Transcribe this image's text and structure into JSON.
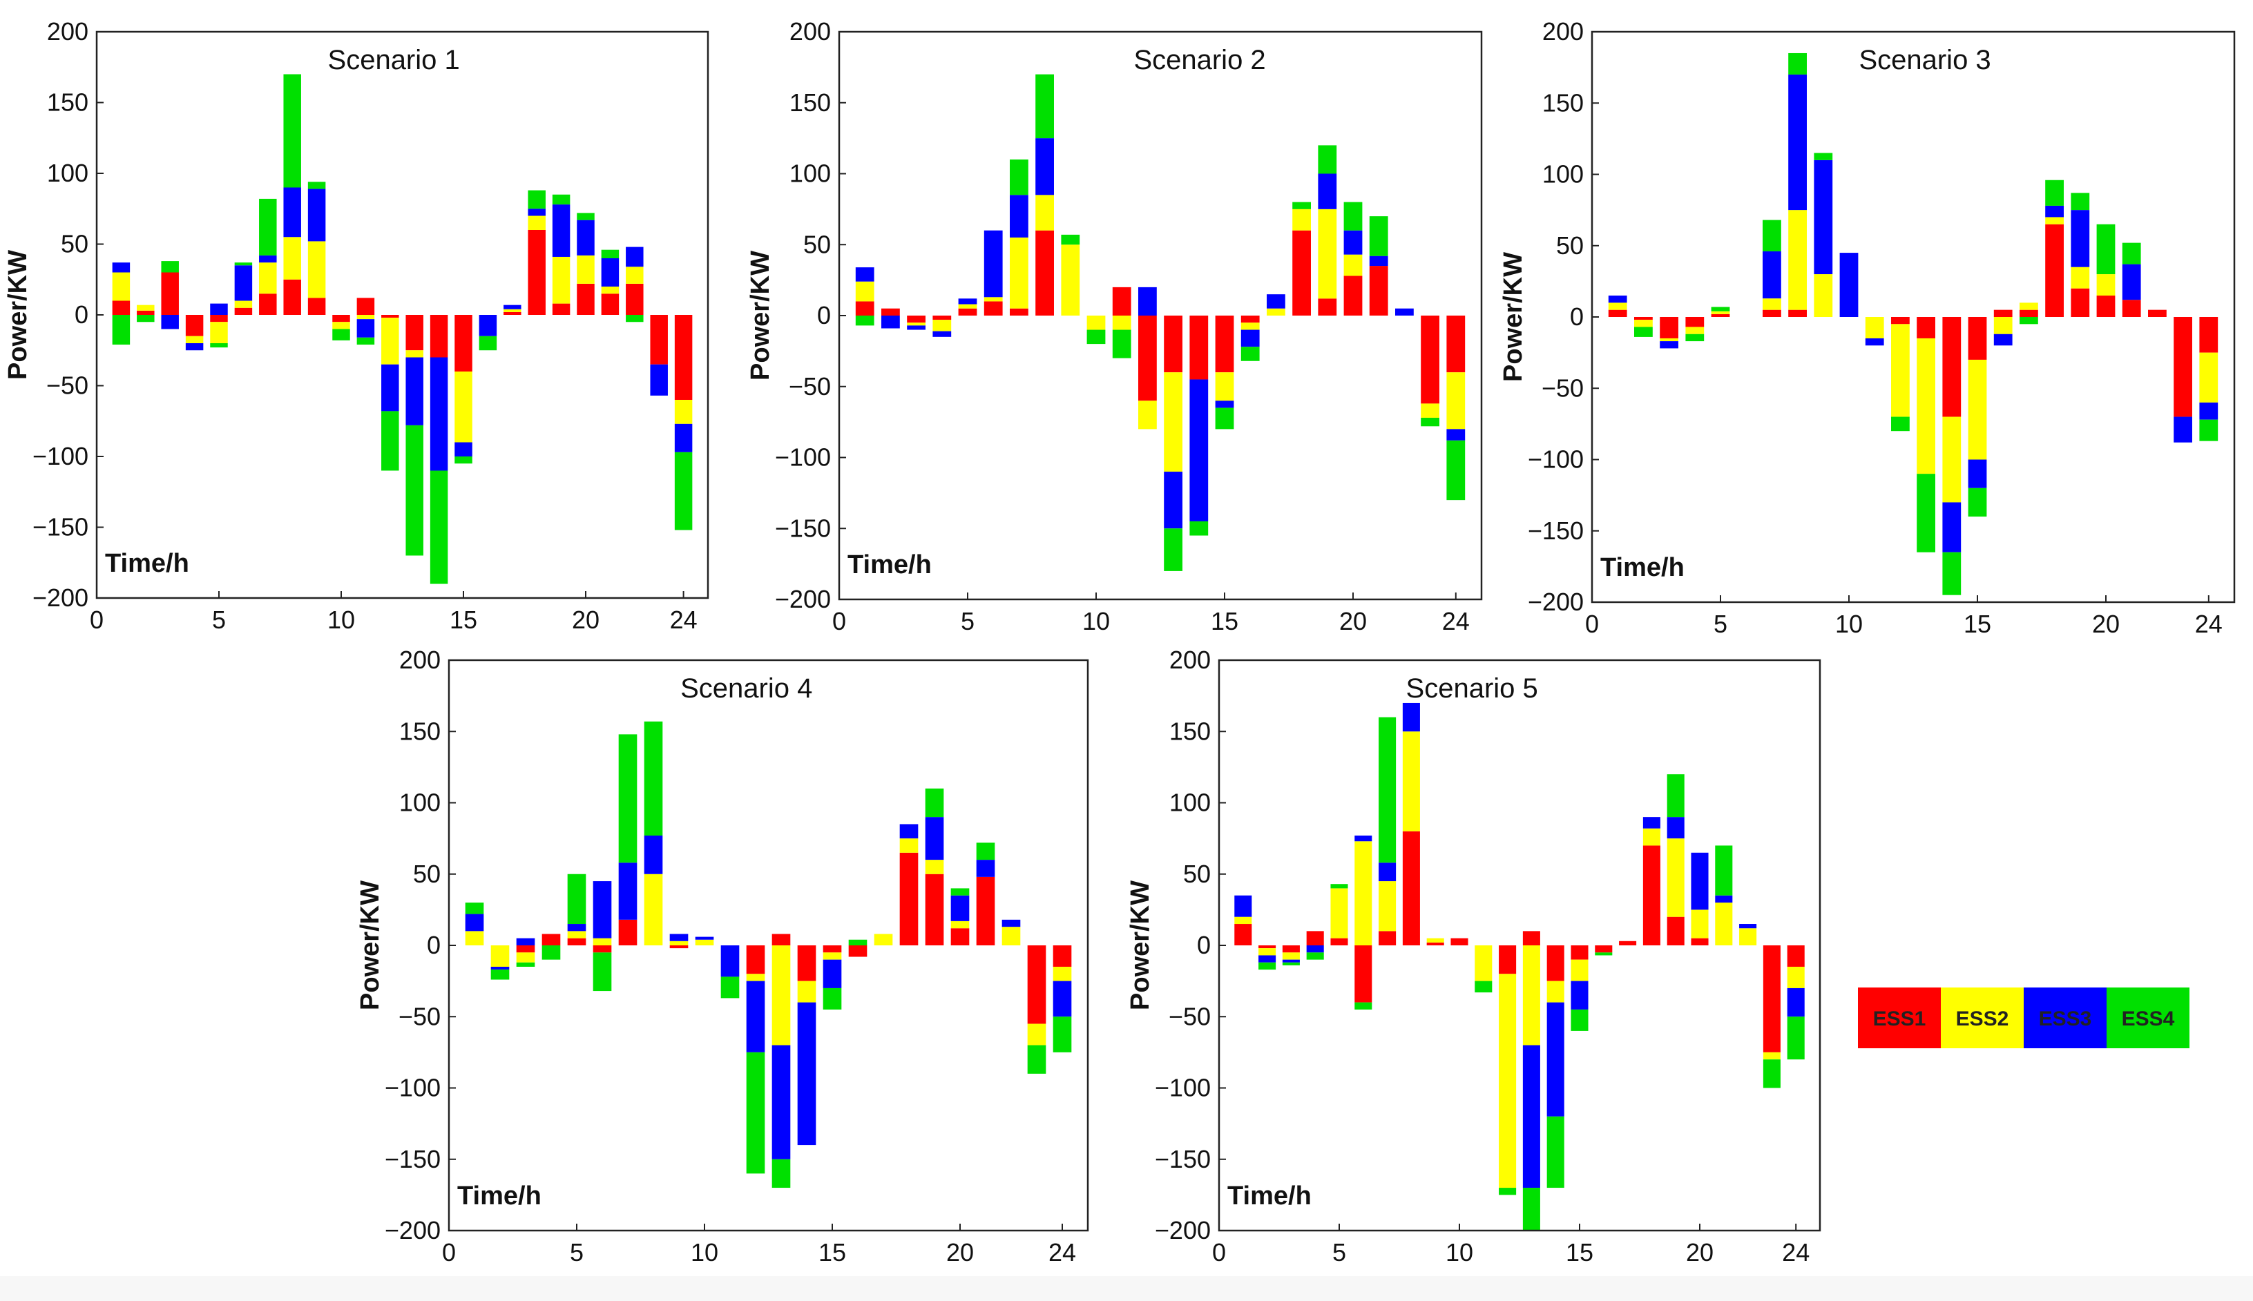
{
  "figure": {
    "time_label": "Time/h"
  },
  "legend": [
    {
      "name": "ESS1",
      "color": "#ff0000"
    },
    {
      "name": "ESS2",
      "color": "#ffff00"
    },
    {
      "name": "ESS3",
      "color": "#0000ff"
    },
    {
      "name": "ESS4",
      "color": "#00e000"
    }
  ],
  "chart_data": [
    {
      "type": "bar",
      "stacked": true,
      "title": "Scenario 1",
      "xlabel": "Time/h",
      "ylabel": "Power/KW",
      "xlim": [
        0,
        25
      ],
      "ylim": [
        -200,
        200
      ],
      "xticks": [
        0,
        5,
        10,
        15,
        20,
        24
      ],
      "yticks": [
        200,
        150,
        100,
        50,
        0,
        -50,
        -100,
        -150,
        -200
      ],
      "categories": [
        1,
        2,
        3,
        4,
        5,
        6,
        7,
        8,
        9,
        10,
        11,
        12,
        13,
        14,
        15,
        16,
        17,
        18,
        19,
        20,
        21,
        22,
        23,
        24
      ],
      "series": [
        {
          "name": "ESS1",
          "values": [
            10,
            3,
            30,
            -15,
            -5,
            5,
            15,
            25,
            12,
            -5,
            12,
            -2,
            -25,
            -30,
            -40,
            0,
            2,
            60,
            8,
            22,
            15,
            22,
            -35,
            -60
          ]
        },
        {
          "name": "ESS2",
          "values": [
            20,
            4,
            0,
            -5,
            -15,
            5,
            22,
            30,
            40,
            -5,
            -3,
            -33,
            -5,
            0,
            -50,
            0,
            2,
            10,
            33,
            20,
            5,
            12,
            0,
            -17
          ]
        },
        {
          "name": "ESS3",
          "values": [
            7,
            0,
            -10,
            -5,
            8,
            25,
            5,
            35,
            37,
            0,
            -13,
            -33,
            -48,
            -80,
            -10,
            -15,
            3,
            5,
            37,
            25,
            20,
            14,
            -22,
            -20
          ]
        },
        {
          "name": "ESS4",
          "values": [
            -21,
            -5,
            8,
            0,
            -3,
            2,
            40,
            80,
            5,
            -8,
            -5,
            -42,
            -92,
            -80,
            -5,
            -10,
            0,
            13,
            7,
            5,
            6,
            -5,
            0,
            -55
          ]
        }
      ]
    },
    {
      "type": "bar",
      "stacked": true,
      "title": "Scenario 2",
      "xlabel": "Time/h",
      "ylabel": "Power/KW",
      "xlim": [
        0,
        25
      ],
      "ylim": [
        -200,
        200
      ],
      "xticks": [
        0,
        5,
        10,
        15,
        20,
        24
      ],
      "yticks": [
        200,
        150,
        100,
        50,
        0,
        -50,
        -100,
        -150,
        -200
      ],
      "categories": [
        1,
        2,
        3,
        4,
        5,
        6,
        7,
        8,
        9,
        10,
        11,
        12,
        13,
        14,
        15,
        16,
        17,
        18,
        19,
        20,
        21,
        22,
        23,
        24
      ],
      "series": [
        {
          "name": "ESS1",
          "values": [
            10,
            5,
            -5,
            -3,
            5,
            10,
            5,
            60,
            0,
            0,
            20,
            -60,
            -40,
            -45,
            -40,
            -5,
            0,
            60,
            12,
            28,
            35,
            0,
            -62,
            -40
          ]
        },
        {
          "name": "ESS2",
          "values": [
            14,
            0,
            -2,
            -8,
            3,
            3,
            50,
            25,
            50,
            -10,
            -10,
            -20,
            -70,
            0,
            -20,
            -5,
            5,
            15,
            63,
            15,
            0,
            0,
            -10,
            -40
          ]
        },
        {
          "name": "ESS3",
          "values": [
            10,
            -9,
            -3,
            -4,
            4,
            47,
            30,
            40,
            0,
            0,
            0,
            20,
            -40,
            -100,
            -5,
            -12,
            10,
            0,
            25,
            17,
            7,
            5,
            0,
            -8
          ]
        },
        {
          "name": "ESS4",
          "values": [
            -7,
            0,
            0,
            0,
            0,
            0,
            25,
            45,
            7,
            -10,
            -20,
            0,
            -30,
            -10,
            -15,
            -10,
            0,
            5,
            20,
            20,
            28,
            0,
            -6,
            -42
          ]
        }
      ]
    },
    {
      "type": "bar",
      "stacked": true,
      "title": "Scenario 3",
      "xlabel": "Time/h",
      "ylabel": "Power/KW",
      "xlim": [
        0,
        25
      ],
      "ylim": [
        -200,
        200
      ],
      "xticks": [
        0,
        5,
        10,
        15,
        20,
        24
      ],
      "yticks": [
        200,
        150,
        100,
        50,
        0,
        -50,
        -100,
        -150,
        -200
      ],
      "categories": [
        1,
        2,
        3,
        4,
        5,
        6,
        7,
        8,
        9,
        10,
        11,
        12,
        13,
        14,
        15,
        16,
        17,
        18,
        19,
        20,
        21,
        22,
        23,
        24
      ],
      "series": [
        {
          "name": "ESS1",
          "values": [
            5,
            -2,
            -15,
            -7,
            2,
            0,
            5,
            5,
            0,
            0,
            0,
            -5,
            -15,
            -70,
            -30,
            5,
            5,
            65,
            20,
            15,
            12,
            5,
            -70,
            -25
          ]
        },
        {
          "name": "ESS2",
          "values": [
            5,
            -5,
            -2,
            -5,
            2,
            0,
            8,
            70,
            30,
            0,
            -15,
            -65,
            -95,
            -60,
            -70,
            -12,
            5,
            5,
            15,
            15,
            0,
            0,
            0,
            -35
          ]
        },
        {
          "name": "ESS3",
          "values": [
            5,
            0,
            -5,
            0,
            0,
            0,
            33,
            95,
            80,
            45,
            -5,
            0,
            0,
            -35,
            -20,
            -8,
            0,
            8,
            40,
            0,
            25,
            0,
            -18,
            -12
          ]
        },
        {
          "name": "ESS4",
          "values": [
            0,
            -7,
            0,
            -5,
            3,
            0,
            22,
            15,
            5,
            0,
            0,
            -10,
            -55,
            -30,
            -20,
            0,
            -5,
            18,
            12,
            35,
            15,
            0,
            0,
            -15
          ]
        }
      ]
    },
    {
      "type": "bar",
      "stacked": true,
      "title": "Scenario 4",
      "xlabel": "Time/h",
      "ylabel": "Power/KW",
      "xlim": [
        0,
        25
      ],
      "ylim": [
        -200,
        200
      ],
      "xticks": [
        0,
        5,
        10,
        15,
        20,
        24
      ],
      "yticks": [
        200,
        150,
        100,
        50,
        0,
        -50,
        -100,
        -150,
        -200
      ],
      "categories": [
        1,
        2,
        3,
        4,
        5,
        6,
        7,
        8,
        9,
        10,
        11,
        12,
        13,
        14,
        15,
        16,
        17,
        18,
        19,
        20,
        21,
        22,
        23,
        24
      ],
      "series": [
        {
          "name": "ESS1",
          "values": [
            0,
            0,
            -5,
            8,
            5,
            -5,
            18,
            0,
            -2,
            0,
            0,
            -20,
            8,
            -25,
            -5,
            -8,
            0,
            65,
            50,
            12,
            48,
            0,
            -55,
            -15
          ]
        },
        {
          "name": "ESS2",
          "values": [
            10,
            -15,
            -7,
            0,
            5,
            5,
            0,
            50,
            3,
            4,
            0,
            -5,
            -70,
            -15,
            -5,
            0,
            8,
            10,
            10,
            5,
            0,
            13,
            -15,
            -10
          ]
        },
        {
          "name": "ESS3",
          "values": [
            12,
            -2,
            5,
            0,
            5,
            40,
            40,
            27,
            5,
            2,
            -22,
            -50,
            -80,
            -100,
            -20,
            0,
            0,
            10,
            30,
            18,
            12,
            5,
            0,
            -25
          ]
        },
        {
          "name": "ESS4",
          "values": [
            8,
            -7,
            -3,
            -10,
            35,
            -27,
            90,
            80,
            0,
            0,
            -15,
            -85,
            -20,
            0,
            -15,
            4,
            0,
            0,
            20,
            5,
            12,
            0,
            -20,
            -25
          ]
        }
      ]
    },
    {
      "type": "bar",
      "stacked": true,
      "title": "Scenario 5",
      "xlabel": "Time/h",
      "ylabel": "Power/KW",
      "xlim": [
        0,
        25
      ],
      "ylim": [
        -200,
        200
      ],
      "xticks": [
        0,
        5,
        10,
        15,
        20,
        24
      ],
      "yticks": [
        200,
        150,
        100,
        50,
        0,
        -50,
        -100,
        -150,
        -200
      ],
      "categories": [
        1,
        2,
        3,
        4,
        5,
        6,
        7,
        8,
        9,
        10,
        11,
        12,
        13,
        14,
        15,
        16,
        17,
        18,
        19,
        20,
        21,
        22,
        23,
        24
      ],
      "series": [
        {
          "name": "ESS1",
          "values": [
            15,
            -2,
            -5,
            10,
            5,
            -40,
            10,
            80,
            2,
            5,
            0,
            -20,
            10,
            -25,
            -10,
            -5,
            3,
            70,
            20,
            5,
            0,
            0,
            -75,
            -15
          ]
        },
        {
          "name": "ESS2",
          "values": [
            5,
            -5,
            -5,
            0,
            35,
            73,
            35,
            70,
            3,
            0,
            -25,
            -150,
            -70,
            -15,
            -15,
            0,
            0,
            12,
            55,
            20,
            30,
            12,
            -5,
            -15
          ]
        },
        {
          "name": "ESS3",
          "values": [
            15,
            -5,
            -2,
            -5,
            0,
            4,
            13,
            20,
            0,
            0,
            0,
            0,
            -100,
            -80,
            -20,
            0,
            0,
            8,
            15,
            40,
            5,
            3,
            0,
            -20
          ]
        },
        {
          "name": "ESS4",
          "values": [
            0,
            -5,
            -2,
            -5,
            3,
            -5,
            102,
            0,
            0,
            0,
            -8,
            -5,
            -30,
            -50,
            -15,
            -2,
            0,
            0,
            30,
            0,
            35,
            0,
            -20,
            -30
          ]
        }
      ]
    }
  ]
}
